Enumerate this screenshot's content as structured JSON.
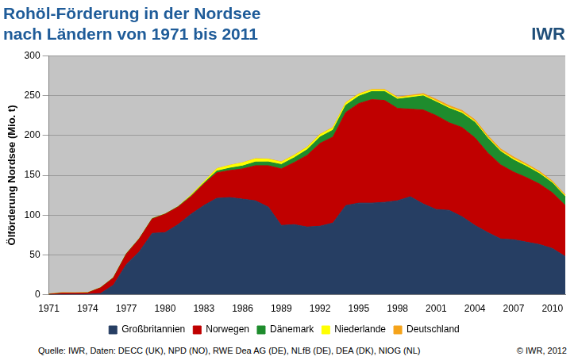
{
  "chart_data": {
    "type": "area",
    "title": [
      "Rohöl-Förderung in der Nordsee",
      "nach Ländern von 1971 bis 2011"
    ],
    "ylabel": "Ölförderung Nordsee (Mio. t)",
    "annotations": [
      "IWR",
      "Quelle: IWR, Daten: DECC (UK), NPD (NO), RWE Dea AG (DE), NLfB (DE), DEA (DK), NIOG (NL)",
      "© IWR, 2012"
    ],
    "categories": [
      "1971",
      null,
      null,
      "1974",
      null,
      null,
      "1977",
      null,
      null,
      "1980",
      null,
      null,
      "1983",
      null,
      null,
      "1986",
      null,
      null,
      "1989",
      null,
      null,
      "1992",
      null,
      null,
      "1995",
      null,
      null,
      "1998",
      null,
      null,
      "2001",
      null,
      null,
      "2004",
      null,
      null,
      "2007",
      null,
      null,
      "2010",
      null
    ],
    "series": [
      {
        "name": "Großbritannien",
        "color": "#263e63",
        "values": [
          0.2,
          0.3,
          0.4,
          0.5,
          1.5,
          12,
          38,
          54,
          77,
          78,
          88,
          101,
          112,
          121,
          122,
          120,
          118,
          110,
          87,
          88,
          85,
          86,
          90,
          112,
          115,
          115,
          116,
          118,
          123,
          114,
          107,
          106,
          98,
          87,
          78,
          70,
          69,
          66,
          63,
          58,
          48
        ]
      },
      {
        "name": "Norwegen",
        "color": "#c00000",
        "values": [
          0.3,
          1.6,
          1.5,
          1.7,
          7,
          9,
          13,
          16,
          18,
          23,
          22,
          22,
          27,
          32,
          34,
          38,
          44,
          52,
          71,
          78,
          90,
          104,
          108,
          117,
          125,
          130,
          128,
          116,
          110,
          118,
          118,
          110,
          112,
          110,
          100,
          93,
          85,
          81,
          76,
          70,
          64
        ]
      },
      {
        "name": "Dänemark",
        "color": "#1e8c2d",
        "values": [
          0,
          0.1,
          0.1,
          0.1,
          0.2,
          0.4,
          0.5,
          0.4,
          0.5,
          0.3,
          0.5,
          0.9,
          1.1,
          2.2,
          2.9,
          3.6,
          4.6,
          4.7,
          5.5,
          6,
          7,
          8,
          8.6,
          9,
          9.2,
          10.1,
          11.2,
          11.6,
          14.6,
          17.7,
          17.1,
          18.1,
          17.9,
          19.4,
          18.4,
          16.7,
          15.1,
          14,
          12.9,
          12.2,
          10.9
        ]
      },
      {
        "name": "Niederlande",
        "color": "#ffff00",
        "values": [
          0,
          0,
          0,
          0,
          0,
          0,
          0,
          0,
          0,
          0,
          0,
          1,
          1.5,
          3,
          3.5,
          4,
          4,
          3.5,
          3,
          3,
          3,
          3,
          3,
          3,
          2.5,
          2,
          1.8,
          1.6,
          1.6,
          1.4,
          1.3,
          1.3,
          1.5,
          1.3,
          1.2,
          1.3,
          1.8,
          1.6,
          1.4,
          1.1,
          1
        ]
      },
      {
        "name": "Deutschland",
        "color": "#f5a31a",
        "values": [
          0.6,
          0.7,
          0.6,
          0.5,
          0.2,
          0.2,
          0.2,
          0.2,
          0.2,
          0.2,
          0.2,
          0.2,
          0.2,
          0.2,
          0.2,
          0.2,
          0.3,
          0.3,
          0.4,
          0.4,
          0.4,
          0.5,
          0.5,
          0.5,
          0.6,
          0.6,
          0.8,
          1,
          1.2,
          1.5,
          2,
          2.1,
          2,
          2.1,
          2.1,
          2,
          2,
          1.7,
          1.6,
          1.5,
          1.4
        ]
      }
    ],
    "ylim": [
      0,
      300
    ],
    "yticks": [
      0,
      50,
      100,
      150,
      200,
      250,
      300
    ],
    "stacked": true,
    "grid": true,
    "legend": "bottom"
  }
}
